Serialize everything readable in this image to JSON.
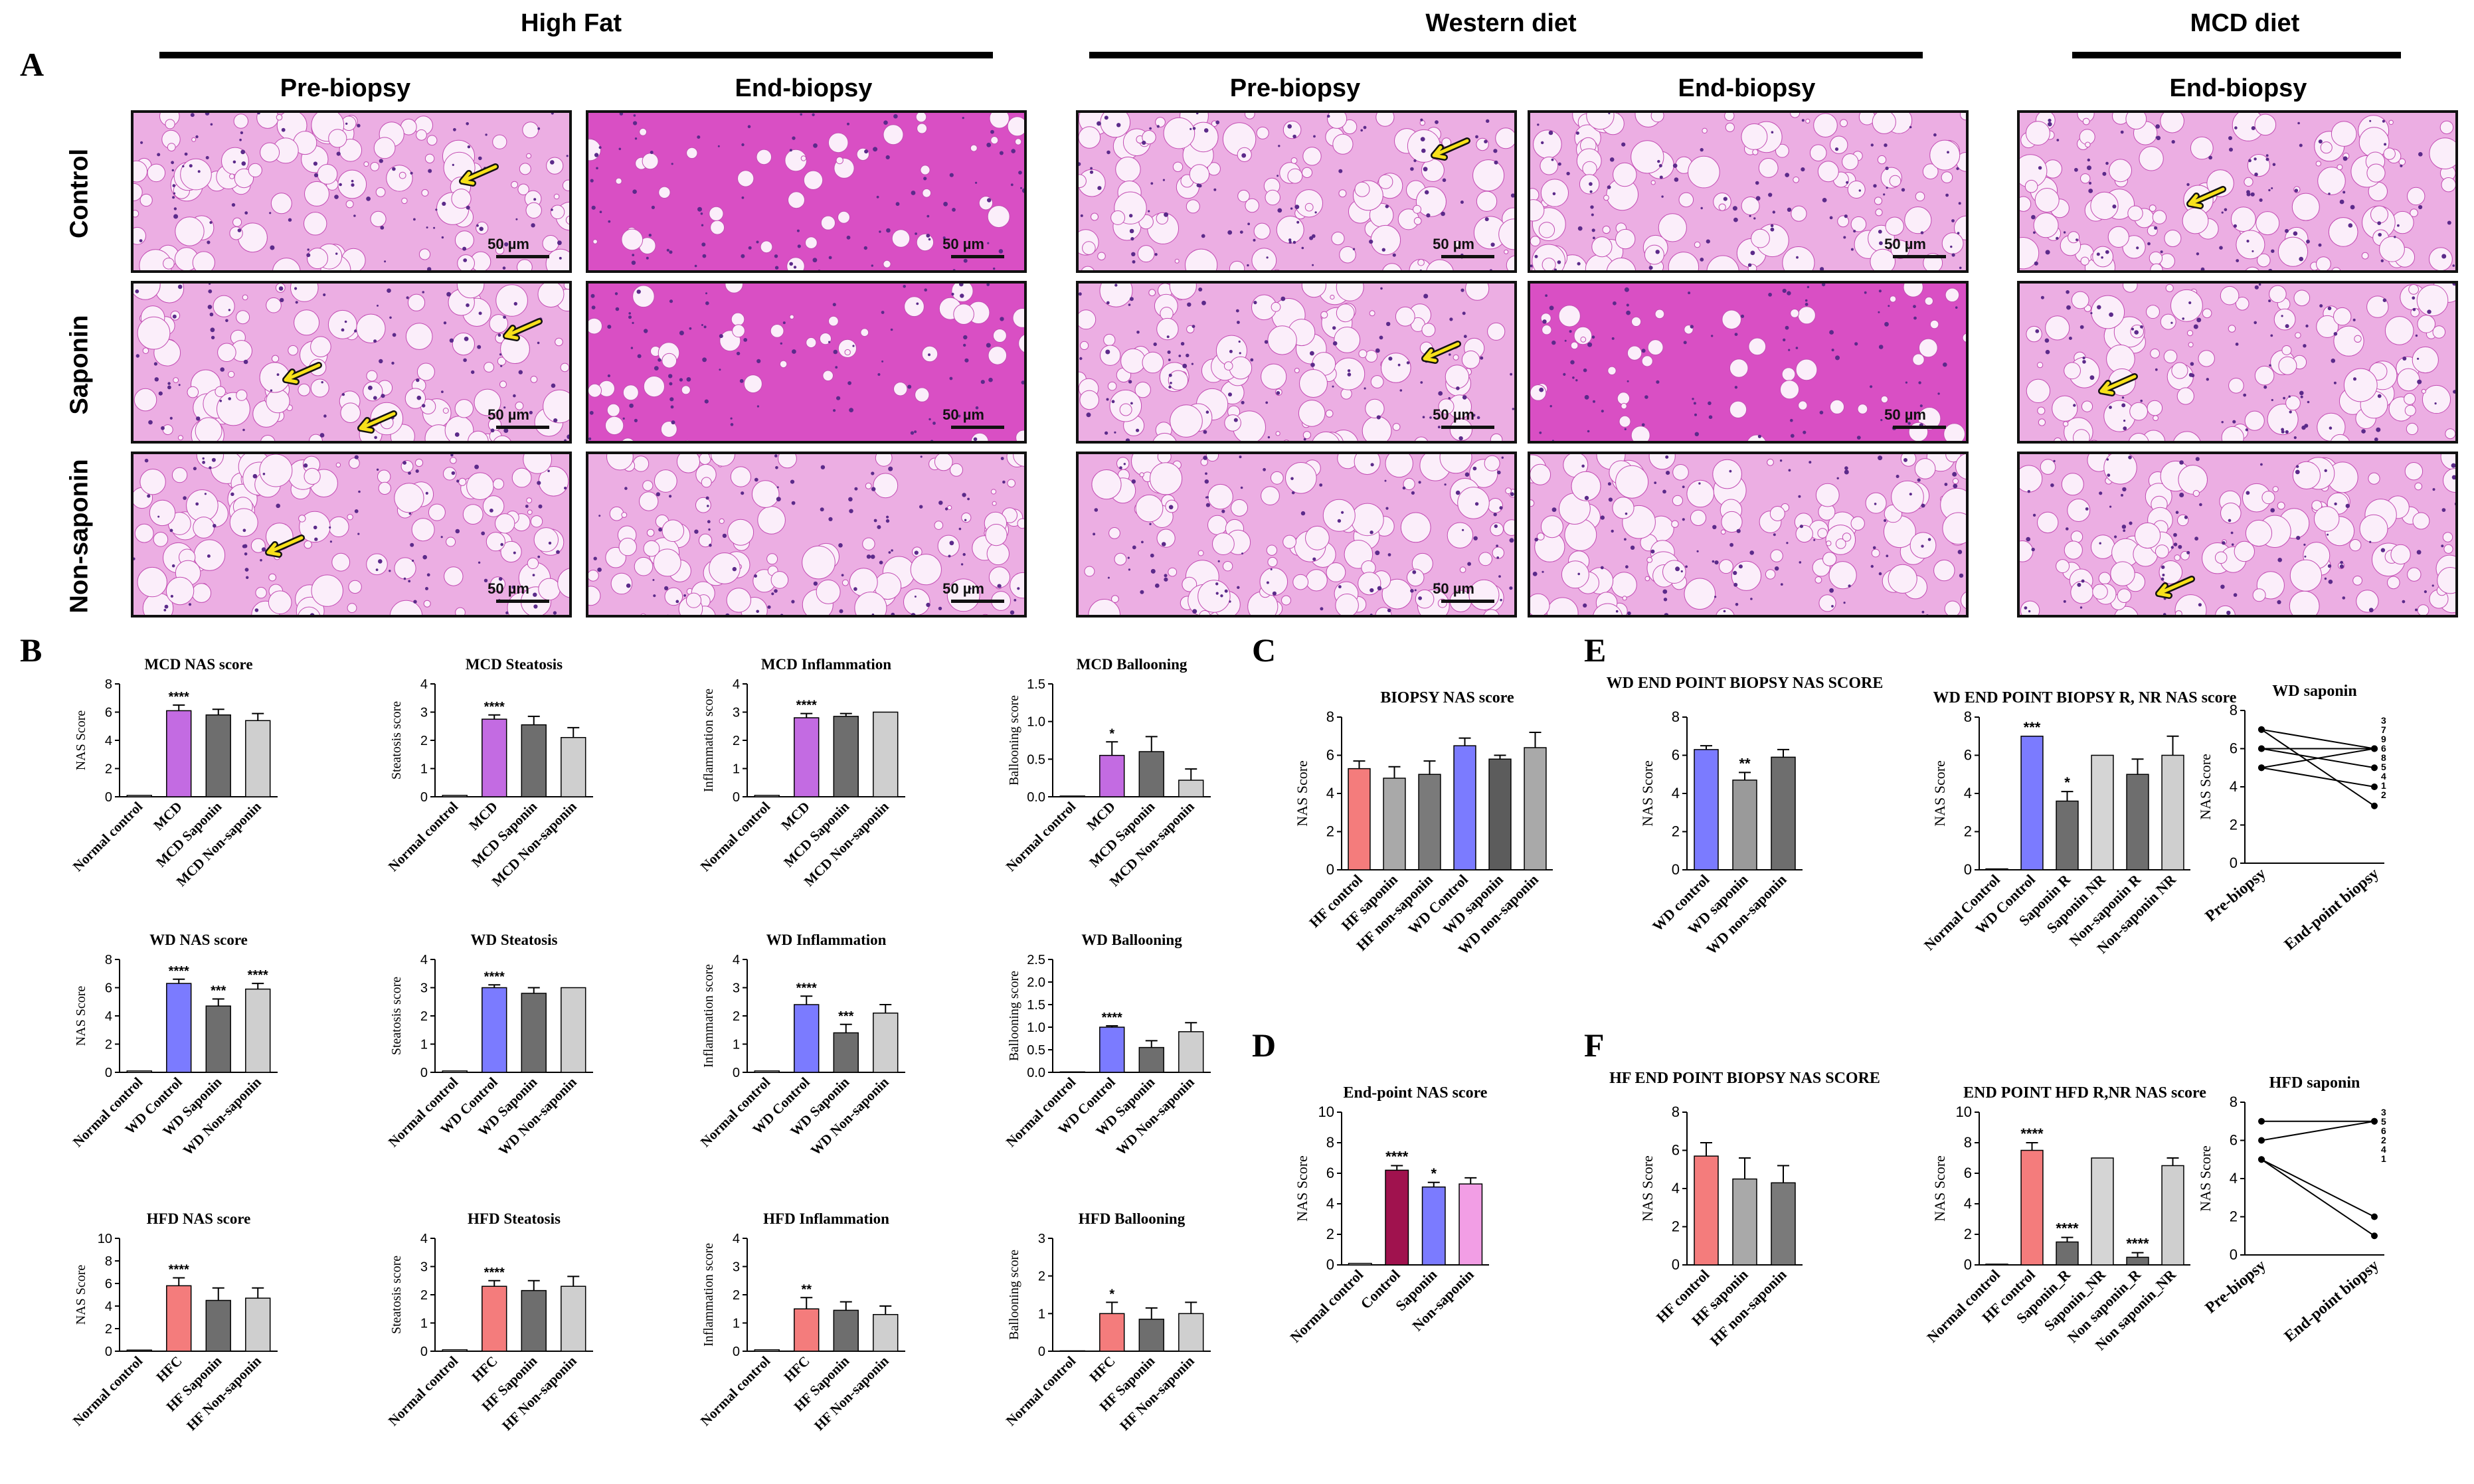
{
  "figure": {
    "panel_letters": {
      "A": "A",
      "B": "B",
      "C": "C",
      "D": "D",
      "E": "E",
      "F": "F"
    },
    "sections": {
      "high_fat": "High Fat",
      "western_diet": "Western diet",
      "mcd_diet": "MCD diet"
    },
    "columns": {
      "pre": "Pre-biopsy",
      "end": "End-biopsy"
    },
    "rows": {
      "control": "Control",
      "saponin": "Saponin",
      "non_saponin": "Non-saponin"
    },
    "scale_label": "50 µm"
  },
  "colors": {
    "tissue": "#d94fc4",
    "tissue_light": "#ecaee3",
    "purple": "#c36be2",
    "blue": "#7b7bff",
    "red": "#f47c7c",
    "dark_gray": "#6e6e6e",
    "mid_gray": "#9a9a9a",
    "light_gray": "#cfcfcf",
    "maroon": "#a0124e",
    "pink": "#f29ee5",
    "arrow": "#f7e11a"
  },
  "chart_data": [
    {
      "id": "mcd_nas",
      "type": "bar",
      "title": "MCD NAS score",
      "ylabel": "NAS Score",
      "ylim": [
        0,
        8
      ],
      "yticks": [
        "0",
        "2",
        "4",
        "6",
        "8"
      ],
      "categories": [
        "Normal control",
        "MCD",
        "MCD Saponin",
        "MCD Non-saponin"
      ],
      "values": [
        0.1,
        6.1,
        5.8,
        5.4
      ],
      "errors": [
        0,
        0.4,
        0.4,
        0.5
      ],
      "colors": [
        "#ffffff",
        "#c36be2",
        "#6e6e6e",
        "#cfcfcf"
      ],
      "sig": [
        "",
        "****",
        "",
        ""
      ]
    },
    {
      "id": "mcd_stea",
      "type": "bar",
      "title": "MCD Steatosis",
      "ylabel": "Steatosis score",
      "ylim": [
        0,
        4
      ],
      "yticks": [
        "0",
        "1",
        "2",
        "3",
        "4"
      ],
      "categories": [
        "Normal control",
        "MCD",
        "MCD Saponin",
        "MCD Non-saponin"
      ],
      "values": [
        0.05,
        2.75,
        2.55,
        2.1
      ],
      "errors": [
        0,
        0.15,
        0.3,
        0.35
      ],
      "colors": [
        "#ffffff",
        "#c36be2",
        "#6e6e6e",
        "#cfcfcf"
      ],
      "sig": [
        "",
        "****",
        "",
        ""
      ]
    },
    {
      "id": "mcd_infl",
      "type": "bar",
      "title": "MCD Inflammation",
      "ylabel": "Inflammation score",
      "ylim": [
        0,
        4
      ],
      "yticks": [
        "0",
        "1",
        "2",
        "3",
        "4"
      ],
      "categories": [
        "Normal control",
        "MCD",
        "MCD Saponin",
        "MCD Non-saponin"
      ],
      "values": [
        0.05,
        2.8,
        2.85,
        3.0
      ],
      "errors": [
        0,
        0.15,
        0.1,
        0
      ],
      "colors": [
        "#ffffff",
        "#c36be2",
        "#6e6e6e",
        "#cfcfcf"
      ],
      "sig": [
        "",
        "****",
        "",
        ""
      ]
    },
    {
      "id": "mcd_ball",
      "type": "bar",
      "title": "MCD Ballooning",
      "ylabel": "Ballooning score",
      "ylim": [
        0,
        1.5
      ],
      "yticks": [
        "0.0",
        "0.5",
        "1.0",
        "1.5"
      ],
      "categories": [
        "Normal control",
        "MCD",
        "MCD Saponin",
        "MCD Non-saponin"
      ],
      "values": [
        0.01,
        0.55,
        0.6,
        0.22
      ],
      "errors": [
        0,
        0.18,
        0.2,
        0.15
      ],
      "colors": [
        "#ffffff",
        "#c36be2",
        "#6e6e6e",
        "#cfcfcf"
      ],
      "sig": [
        "",
        "*",
        "",
        ""
      ]
    },
    {
      "id": "wd_nas",
      "type": "bar",
      "title": "WD NAS score",
      "ylabel": "NAS Score",
      "ylim": [
        0,
        8
      ],
      "yticks": [
        "0",
        "2",
        "4",
        "6",
        "8"
      ],
      "categories": [
        "Normal control",
        "WD Control",
        "WD Saponin",
        "WD Non-saponin"
      ],
      "values": [
        0.1,
        6.3,
        4.7,
        5.9
      ],
      "errors": [
        0,
        0.3,
        0.5,
        0.4
      ],
      "colors": [
        "#ffffff",
        "#7b7bff",
        "#6e6e6e",
        "#cfcfcf"
      ],
      "sig": [
        "",
        "****",
        "***",
        "****"
      ]
    },
    {
      "id": "wd_stea",
      "type": "bar",
      "title": "WD Steatosis",
      "ylabel": "Steatosis score",
      "ylim": [
        0,
        4
      ],
      "yticks": [
        "0",
        "1",
        "2",
        "3",
        "4"
      ],
      "categories": [
        "Normal control",
        "WD Control",
        "WD Saponin",
        "WD Non-saponin"
      ],
      "values": [
        0.05,
        3.0,
        2.8,
        3.0
      ],
      "errors": [
        0,
        0.1,
        0.2,
        0
      ],
      "colors": [
        "#ffffff",
        "#7b7bff",
        "#6e6e6e",
        "#cfcfcf"
      ],
      "sig": [
        "",
        "****",
        "",
        ""
      ]
    },
    {
      "id": "wd_infl",
      "type": "bar",
      "title": "WD Inflammation",
      "ylabel": "Inflammation score",
      "ylim": [
        0,
        4
      ],
      "yticks": [
        "0",
        "1",
        "2",
        "3",
        "4"
      ],
      "categories": [
        "Normal control",
        "WD Control",
        "WD Saponin",
        "WD Non-saponin"
      ],
      "values": [
        0.05,
        2.4,
        1.4,
        2.1
      ],
      "errors": [
        0,
        0.3,
        0.3,
        0.3
      ],
      "colors": [
        "#ffffff",
        "#7b7bff",
        "#6e6e6e",
        "#cfcfcf"
      ],
      "sig": [
        "",
        "****",
        "***",
        ""
      ]
    },
    {
      "id": "wd_ball",
      "type": "bar",
      "title": "WD Ballooning",
      "ylabel": "Ballooning score",
      "ylim": [
        0,
        2.5
      ],
      "yticks": [
        "0.0",
        "0.5",
        "1.0",
        "1.5",
        "2.0",
        "2.5"
      ],
      "categories": [
        "Normal control",
        "WD Control",
        "WD Saponin",
        "WD Non-saponin"
      ],
      "values": [
        0.01,
        1.0,
        0.55,
        0.9
      ],
      "errors": [
        0,
        0.03,
        0.15,
        0.2
      ],
      "colors": [
        "#ffffff",
        "#7b7bff",
        "#6e6e6e",
        "#cfcfcf"
      ],
      "sig": [
        "",
        "****",
        "",
        ""
      ]
    },
    {
      "id": "hfd_nas",
      "type": "bar",
      "title": "HFD NAS score",
      "ylabel": "NAS Score",
      "ylim": [
        0,
        10
      ],
      "yticks": [
        "0",
        "2",
        "4",
        "6",
        "8",
        "10"
      ],
      "categories": [
        "Normal control",
        "HFC",
        "HF Saponin",
        "HF Non-saponin"
      ],
      "values": [
        0.1,
        5.8,
        4.5,
        4.7
      ],
      "errors": [
        0,
        0.7,
        1.1,
        0.9
      ],
      "colors": [
        "#ffffff",
        "#f47c7c",
        "#6e6e6e",
        "#cfcfcf"
      ],
      "sig": [
        "",
        "****",
        "",
        ""
      ]
    },
    {
      "id": "hfd_stea",
      "type": "bar",
      "title": "HFD Steatosis",
      "ylabel": "Steatosis score",
      "ylim": [
        0,
        4
      ],
      "yticks": [
        "0",
        "1",
        "2",
        "3",
        "4"
      ],
      "categories": [
        "Normal control",
        "HFC",
        "HF Saponin",
        "HF Non-saponin"
      ],
      "values": [
        0.05,
        2.3,
        2.15,
        2.3
      ],
      "errors": [
        0,
        0.2,
        0.35,
        0.35
      ],
      "colors": [
        "#ffffff",
        "#f47c7c",
        "#6e6e6e",
        "#cfcfcf"
      ],
      "sig": [
        "",
        "****",
        "",
        ""
      ]
    },
    {
      "id": "hfd_infl",
      "type": "bar",
      "title": "HFD Inflammation",
      "ylabel": "Inflammation score",
      "ylim": [
        0,
        4
      ],
      "yticks": [
        "0",
        "1",
        "2",
        "3",
        "4"
      ],
      "categories": [
        "Normal control",
        "HFC",
        "HF Saponin",
        "HF Non-saponin"
      ],
      "values": [
        0.05,
        1.5,
        1.45,
        1.3
      ],
      "errors": [
        0,
        0.4,
        0.3,
        0.3
      ],
      "colors": [
        "#ffffff",
        "#f47c7c",
        "#6e6e6e",
        "#cfcfcf"
      ],
      "sig": [
        "",
        "**",
        "",
        ""
      ]
    },
    {
      "id": "hfd_ball",
      "type": "bar",
      "title": "HFD Ballooning",
      "ylabel": "Ballooning score",
      "ylim": [
        0,
        3
      ],
      "yticks": [
        "0",
        "1",
        "2",
        "3"
      ],
      "categories": [
        "Normal control",
        "HFC",
        "HF Saponin",
        "HF Non-saponin"
      ],
      "values": [
        0.01,
        1.0,
        0.85,
        1.0
      ],
      "errors": [
        0,
        0.3,
        0.3,
        0.3
      ],
      "colors": [
        "#ffffff",
        "#f47c7c",
        "#6e6e6e",
        "#cfcfcf"
      ],
      "sig": [
        "",
        "*",
        "",
        ""
      ]
    },
    {
      "id": "biopsy_nas",
      "type": "bar",
      "title": "BIOPSY NAS score",
      "ylabel": "NAS Score",
      "ylim": [
        0,
        8
      ],
      "yticks": [
        "0",
        "2",
        "4",
        "6",
        "8"
      ],
      "categories": [
        "HF control",
        "HF saponin",
        "HF non-saponin",
        "WD Control",
        "WD saponin",
        "WD non-saponin"
      ],
      "values": [
        5.3,
        4.8,
        5.0,
        6.5,
        5.8,
        6.4
      ],
      "errors": [
        0.4,
        0.6,
        0.7,
        0.4,
        0.2,
        0.8
      ],
      "colors": [
        "#f47c7c",
        "#a9a9a9",
        "#7a7a7a",
        "#7b7bff",
        "#5c5c5c",
        "#a9a9a9"
      ],
      "sig": [
        "",
        "",
        "",
        "",
        "",
        ""
      ]
    },
    {
      "id": "endpoint_nas",
      "type": "bar",
      "title": "End-point NAS score",
      "ylabel": "NAS Score",
      "ylim": [
        0,
        10
      ],
      "yticks": [
        "0",
        "2",
        "4",
        "6",
        "8",
        "10"
      ],
      "categories": [
        "Normal control",
        "Control",
        "Saponin",
        "Non-saponin"
      ],
      "values": [
        0.1,
        6.2,
        5.1,
        5.3
      ],
      "errors": [
        0,
        0.3,
        0.3,
        0.4
      ],
      "colors": [
        "#ffffff",
        "#a0124e",
        "#7b7bff",
        "#f29ee5"
      ],
      "sig": [
        "",
        "****",
        "*",
        ""
      ]
    },
    {
      "id": "wd_end_nas",
      "type": "bar",
      "title": "WD END POINT BIOPSY NAS SCORE",
      "ylabel": "NAS Score",
      "ylim": [
        0,
        8
      ],
      "yticks": [
        "0",
        "2",
        "4",
        "6",
        "8"
      ],
      "categories": [
        "WD control",
        "WD saponin",
        "WD non-saponin"
      ],
      "values": [
        6.3,
        4.7,
        5.9
      ],
      "errors": [
        0.2,
        0.4,
        0.4
      ],
      "colors": [
        "#7b7bff",
        "#9a9a9a",
        "#6e6e6e"
      ],
      "sig": [
        "",
        "**",
        ""
      ]
    },
    {
      "id": "wd_rnr",
      "type": "bar",
      "title": "WD END POINT BIOPSY R, NR NAS score",
      "ylabel": "NAS Score",
      "ylim": [
        0,
        8
      ],
      "yticks": [
        "0",
        "2",
        "4",
        "6",
        "8"
      ],
      "categories": [
        "Normal Control",
        "WD Control",
        "Saponin R",
        "Saponin NR",
        "Non-saponin R",
        "Non-saponin NR"
      ],
      "values": [
        0.05,
        7.0,
        3.6,
        6.0,
        5.0,
        6.0
      ],
      "errors": [
        0,
        0,
        0.5,
        0,
        0.8,
        1.0
      ],
      "colors": [
        "#ffffff",
        "#7b7bff",
        "#6e6e6e",
        "#d5d5d5",
        "#6e6e6e",
        "#cfcfcf"
      ],
      "sig": [
        "",
        "***",
        "*",
        "",
        "",
        ""
      ]
    },
    {
      "id": "wd_saponin",
      "type": "paired",
      "title": "WD saponin",
      "ylabel": "NAS Score",
      "ylim": [
        0,
        8
      ],
      "yticks": [
        "0",
        "2",
        "4",
        "6",
        "8"
      ],
      "categories": [
        "Pre-biopsy",
        "End-point biopsy"
      ],
      "pairs": [
        [
          7,
          6
        ],
        [
          7,
          3
        ],
        [
          6,
          5
        ],
        [
          6,
          6
        ],
        [
          5,
          4
        ],
        [
          5,
          6
        ]
      ],
      "end_labels": [
        "3",
        "7",
        "9",
        "6",
        "8",
        "5",
        "4",
        "1",
        "2"
      ]
    },
    {
      "id": "hf_end_nas",
      "type": "bar",
      "title": "HF END POINT BIOPSY NAS SCORE",
      "ylabel": "NAS Score",
      "ylim": [
        0,
        8
      ],
      "yticks": [
        "0",
        "2",
        "4",
        "6",
        "8"
      ],
      "categories": [
        "HF control",
        "HF saponin",
        "HF non-saponin"
      ],
      "values": [
        5.7,
        4.5,
        4.3
      ],
      "errors": [
        0.7,
        1.1,
        0.9
      ],
      "colors": [
        "#f47c7c",
        "#a9a9a9",
        "#7a7a7a"
      ],
      "sig": [
        "",
        "",
        ""
      ]
    },
    {
      "id": "hfd_rnr",
      "type": "bar",
      "title": "END POINT HFD R,NR NAS score",
      "ylabel": "NAS Score",
      "ylim": [
        0,
        10
      ],
      "yticks": [
        "0",
        "2",
        "4",
        "6",
        "8",
        "10"
      ],
      "categories": [
        "Normal control",
        "HF control",
        "Saponin_R",
        "Saponin_NR",
        "Non saponin_R",
        "Non saponin_NR"
      ],
      "values": [
        0.05,
        7.5,
        1.5,
        7.0,
        0.5,
        6.5
      ],
      "errors": [
        0,
        0.5,
        0.3,
        0,
        0.3,
        0.5
      ],
      "colors": [
        "#ffffff",
        "#f47c7c",
        "#6e6e6e",
        "#d5d5d5",
        "#6e6e6e",
        "#cfcfcf"
      ],
      "sig": [
        "",
        "****",
        "****",
        "",
        "****",
        ""
      ]
    },
    {
      "id": "hfd_saponin",
      "type": "paired",
      "title": "HFD saponin",
      "ylabel": "NAS Score",
      "ylim": [
        0,
        8
      ],
      "yticks": [
        "0",
        "2",
        "4",
        "6",
        "8"
      ],
      "categories": [
        "Pre-biopsy",
        "End-point biopsy"
      ],
      "pairs": [
        [
          7,
          7
        ],
        [
          6,
          7
        ],
        [
          5,
          2
        ],
        [
          5,
          1
        ]
      ],
      "end_labels": [
        "3",
        "5",
        "6",
        "2",
        "4",
        "1"
      ]
    }
  ]
}
